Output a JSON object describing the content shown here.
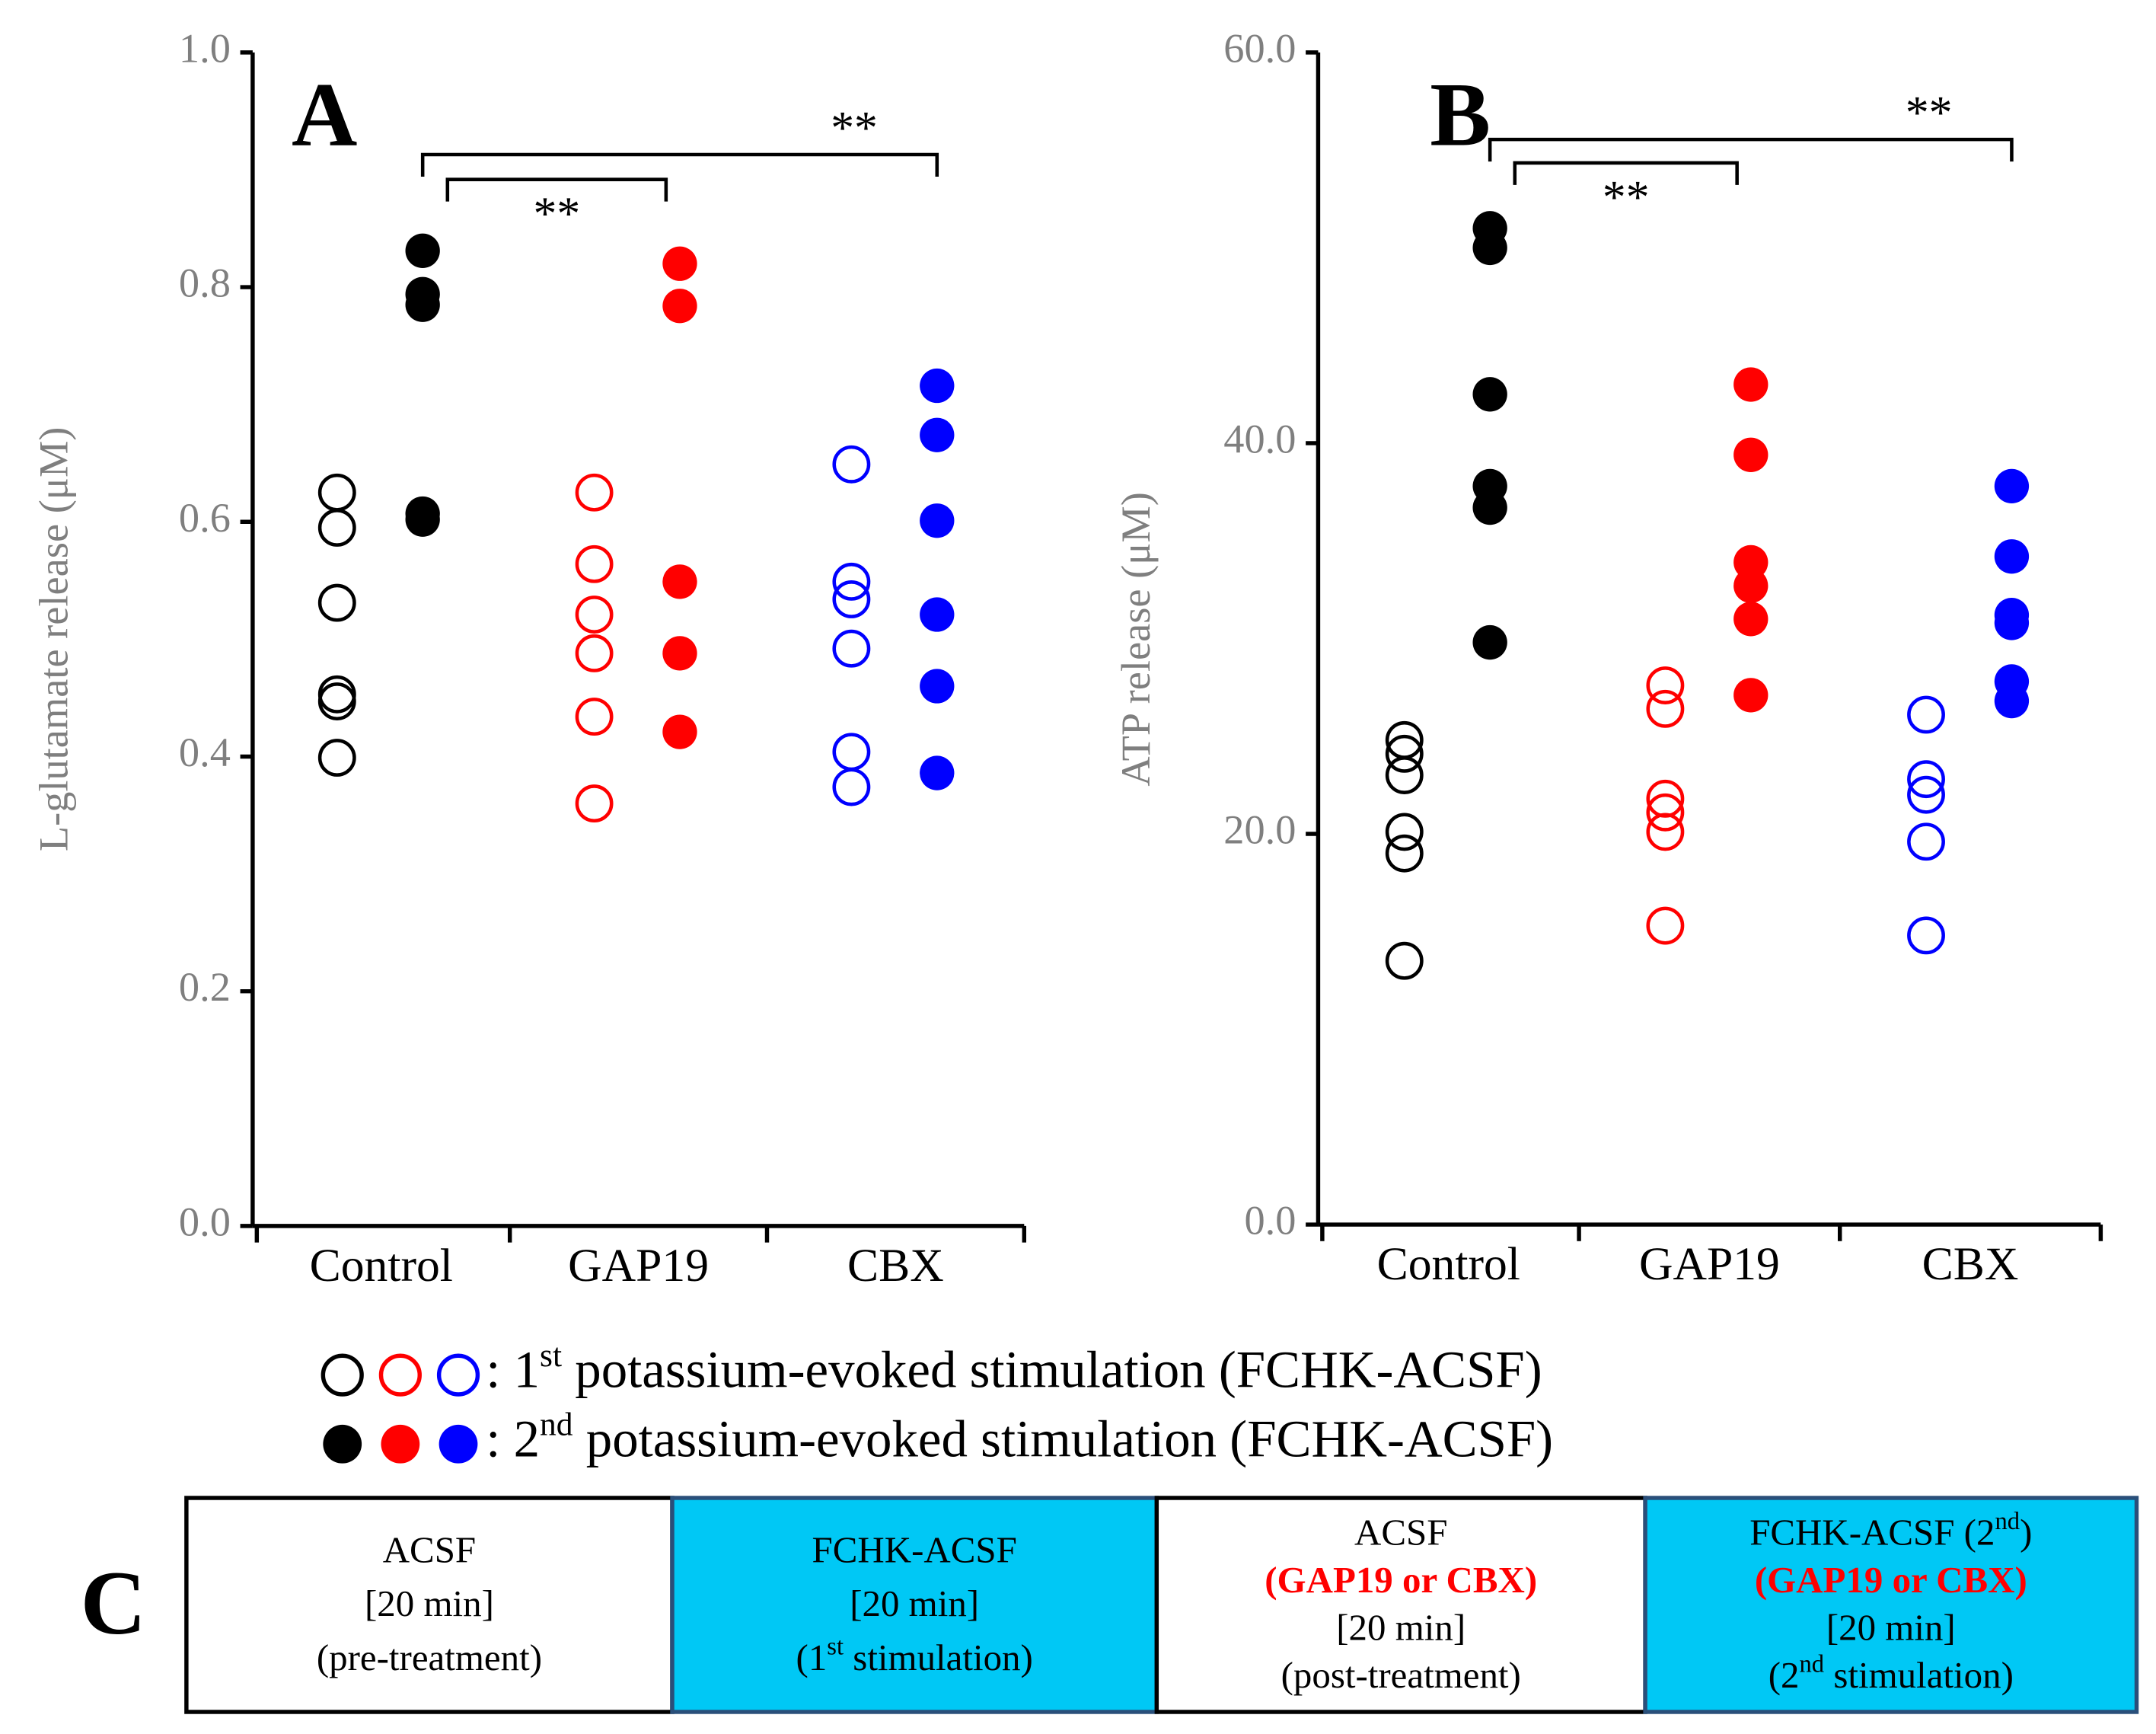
{
  "chart_data": [
    {
      "type": "strip",
      "panel": "A",
      "ylabel": "L-glutamate release (μM)",
      "ylim": [
        0,
        1
      ],
      "yticks": [
        {
          "value": 0,
          "label": "0.0"
        },
        0.2,
        0.4,
        0.6,
        0.8,
        {
          "value": 1,
          "label": "1.0"
        }
      ],
      "categories": [
        "Control",
        "GAP19",
        "CBX"
      ],
      "colors": [
        "#000000",
        "#ff0000",
        "#0000ff"
      ],
      "groups": [
        {
          "first": [
            0.625,
            0.595,
            0.531,
            0.453,
            0.447,
            0.399
          ],
          "second": [
            0.831,
            0.794,
            0.785,
            0.607,
            0.602
          ]
        },
        {
          "first": [
            0.625,
            0.564,
            0.521,
            0.488,
            0.434,
            0.36
          ],
          "second": [
            0.82,
            0.784,
            0.549,
            0.488,
            0.421
          ]
        },
        {
          "first": [
            0.649,
            0.549,
            0.534,
            0.492,
            0.404,
            0.374
          ],
          "second": [
            0.716,
            0.674,
            0.601,
            0.521,
            0.46,
            0.386
          ]
        }
      ],
      "significance": [
        {
          "compare": [
            0,
            1
          ],
          "label": "**"
        },
        {
          "compare": [
            0,
            2
          ],
          "label": "**"
        }
      ]
    },
    {
      "type": "strip",
      "panel": "B",
      "ylabel": "ATP release (μM)",
      "ylim": [
        0,
        60
      ],
      "yticks": [
        {
          "value": 0,
          "label": "0.0"
        },
        {
          "value": 20,
          "label": "20.0"
        },
        {
          "value": 40,
          "label": "40.0"
        },
        {
          "value": 60,
          "label": "60.0"
        }
      ],
      "categories": [
        "Control",
        "GAP19",
        "CBX"
      ],
      "colors": [
        "#000000",
        "#ff0000",
        "#0000ff"
      ],
      "groups": [
        {
          "first": [
            24.8,
            24.1,
            23.0,
            20.1,
            19.0,
            13.5
          ],
          "second": [
            51.0,
            50.0,
            42.5,
            37.8,
            36.7,
            29.8
          ]
        },
        {
          "first": [
            27.6,
            26.4,
            21.8,
            21.1,
            20.1,
            15.3
          ],
          "second": [
            43.0,
            39.4,
            33.9,
            32.7,
            31.0,
            27.1
          ]
        },
        {
          "first": [
            26.1,
            22.8,
            22.0,
            19.6,
            14.8
          ],
          "second": [
            37.8,
            34.2,
            31.2,
            30.8,
            27.8,
            26.8
          ]
        }
      ],
      "significance": [
        {
          "compare": [
            0,
            1
          ],
          "label": "**"
        },
        {
          "compare": [
            0,
            2
          ],
          "label": "**"
        }
      ]
    }
  ],
  "legend": [
    {
      "filled": false,
      "parts": [
        ": 1",
        "st",
        " potassium-evoked  stimulation  (FCHK-ACSF)"
      ]
    },
    {
      "filled": true,
      "parts": [
        ": 2",
        "nd",
        " potassium-evoked  stimulation  (FCHK-ACSF)"
      ]
    }
  ],
  "protocol": {
    "label": "C",
    "boxes": [
      {
        "fill": "#ffffff",
        "lines": [
          [
            {
              "t": "ACSF"
            }
          ],
          [
            {
              "t": "[20 min]"
            }
          ],
          [
            {
              "t": "(pre-treatment)"
            }
          ]
        ]
      },
      {
        "fill": "#00c8f5",
        "lines": [
          [
            {
              "t": "FCHK-ACSF"
            }
          ],
          [
            {
              "t": "[20 min]"
            }
          ],
          [
            {
              "t": "(1"
            },
            {
              "t": "st",
              "sup": true
            },
            {
              "t": " stimulation)"
            }
          ]
        ]
      },
      {
        "fill": "#ffffff",
        "lines": [
          [
            {
              "t": "ACSF"
            }
          ],
          [
            {
              "t": "(GAP19 or CBX)",
              "red": true
            }
          ],
          [
            {
              "t": "[20 min]"
            }
          ],
          [
            {
              "t": "(post-treatment)"
            }
          ]
        ]
      },
      {
        "fill": "#00c8f5",
        "lines": [
          [
            {
              "t": "FCHK-ACSF (2"
            },
            {
              "t": "nd",
              "sup": true
            },
            {
              "t": ")"
            }
          ],
          [
            {
              "t": "(GAP19 or CBX)",
              "red": true
            }
          ],
          [
            {
              "t": "[20 min]"
            }
          ],
          [
            {
              "t": "(2"
            },
            {
              "t": "nd",
              "sup": true
            },
            {
              "t": " stimulation)"
            }
          ]
        ]
      }
    ]
  }
}
